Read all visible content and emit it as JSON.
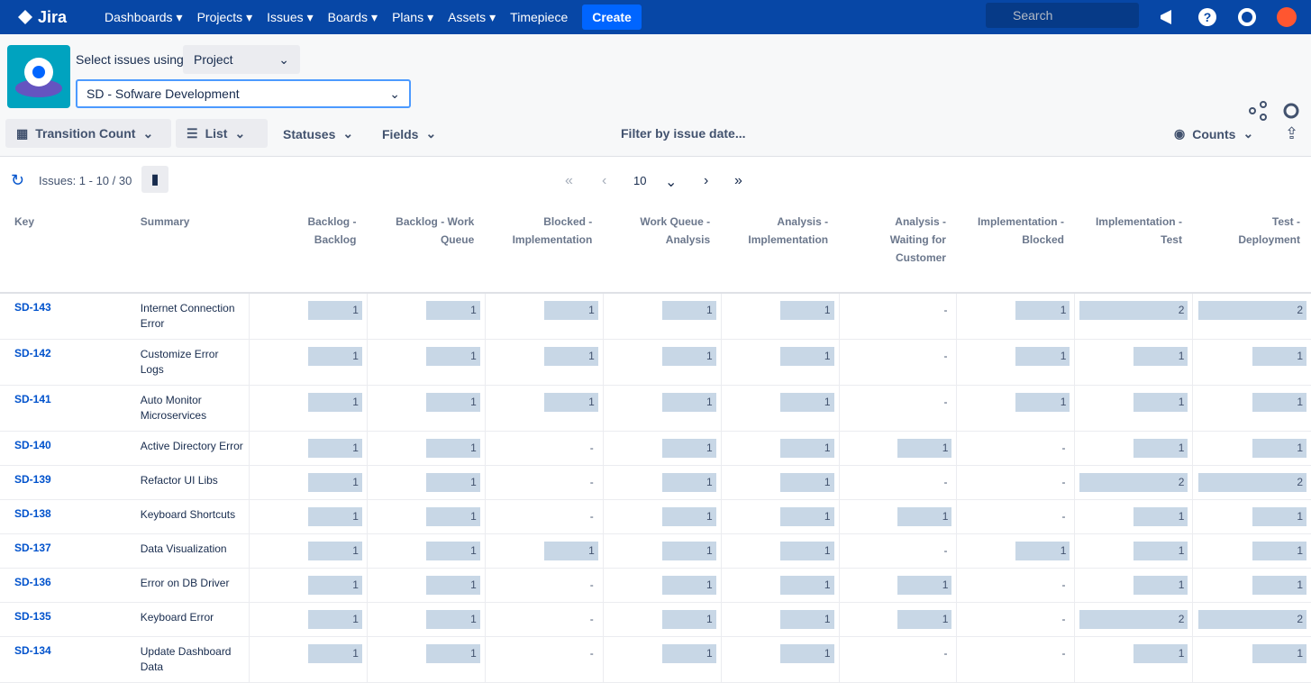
{
  "nav": {
    "logo": "Jira",
    "menus": [
      "Dashboards",
      "Projects",
      "Issues",
      "Boards",
      "Plans",
      "Assets"
    ],
    "timepiece": "Timepiece",
    "create": "Create",
    "search": "Search"
  },
  "toolbar": {
    "select_label": "Select issues using",
    "select_mode": "Project",
    "project": "SD - Sofware Development",
    "view": "Transition Count",
    "layout": "List",
    "statuses": "Statuses",
    "fields": "Fields",
    "filter": "Filter by issue date...",
    "counts": "Counts"
  },
  "pager": {
    "issues": "Issues: 1 - 10 / 30",
    "page_size": 10
  },
  "table": {
    "columns": [
      "Key",
      "Summary",
      "Backlog - Backlog",
      "Backlog - Work Queue",
      "Blocked - Implementation",
      "Work Queue - Analysis",
      "Analysis - Implementation",
      "Analysis - Waiting for Customer",
      "Implementation - Blocked",
      "Implementation - Test",
      "Test - Deployment"
    ],
    "rows": [
      {
        "key": "SD-143",
        "summary": "Internet Connection Error",
        "cells": [
          1,
          1,
          1,
          1,
          1,
          "-",
          1,
          2,
          2
        ]
      },
      {
        "key": "SD-142",
        "summary": "Customize Error Logs",
        "cells": [
          1,
          1,
          1,
          1,
          1,
          "-",
          1,
          1,
          1
        ]
      },
      {
        "key": "SD-141",
        "summary": "Auto Monitor Microservices",
        "cells": [
          1,
          1,
          1,
          1,
          1,
          "-",
          1,
          1,
          1
        ]
      },
      {
        "key": "SD-140",
        "summary": "Active Directory Error",
        "cells": [
          1,
          1,
          "-",
          1,
          1,
          1,
          "-",
          1,
          1
        ]
      },
      {
        "key": "SD-139",
        "summary": "Refactor UI Libs",
        "cells": [
          1,
          1,
          "-",
          1,
          1,
          "-",
          "-",
          2,
          2
        ]
      },
      {
        "key": "SD-138",
        "summary": "Keyboard Shortcuts",
        "cells": [
          1,
          1,
          "-",
          1,
          1,
          1,
          "-",
          1,
          1
        ]
      },
      {
        "key": "SD-137",
        "summary": "Data Visualization",
        "cells": [
          1,
          1,
          1,
          1,
          1,
          "-",
          1,
          1,
          1
        ]
      },
      {
        "key": "SD-136",
        "summary": "Error on DB Driver",
        "cells": [
          1,
          1,
          "-",
          1,
          1,
          1,
          "-",
          1,
          1
        ]
      },
      {
        "key": "SD-135",
        "summary": "Keyboard Error",
        "cells": [
          1,
          1,
          "-",
          1,
          1,
          1,
          "-",
          2,
          2
        ]
      },
      {
        "key": "SD-134",
        "summary": "Update Dashboard Data",
        "cells": [
          1,
          1,
          "-",
          1,
          1,
          "-",
          "-",
          1,
          1
        ]
      }
    ]
  }
}
